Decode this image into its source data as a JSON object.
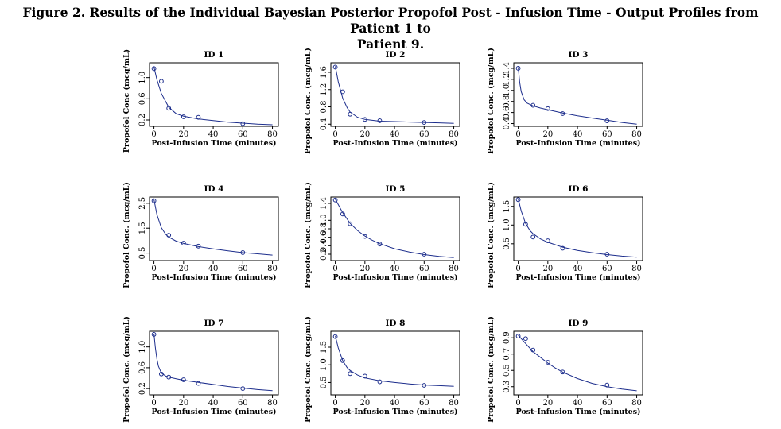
{
  "figure": {
    "title_line1": "Figure 2. Results of the Individual Bayesian Posterior Propofol Post - Infusion Time - Output Profiles from Patient 1 to",
    "title_line2": "Patient 9."
  },
  "chart_data": [
    {
      "type": "scatter",
      "title": "ID 1",
      "xlabel": "Post-Infusion Time (minutes)",
      "ylabel": "Propofol Conc (mcg/mL)",
      "xlim": [
        -3,
        84
      ],
      "ylim": [
        0.08,
        1.28
      ],
      "xticks": [
        0,
        20,
        40,
        60,
        80
      ],
      "yticks": [
        0.2,
        0.6,
        1.0
      ],
      "grid": false,
      "legend": "none",
      "points": {
        "x": [
          0,
          5,
          10,
          20,
          30,
          60
        ],
        "y": [
          1.17,
          0.93,
          0.42,
          0.26,
          0.25,
          0.13
        ]
      },
      "fit": {
        "x": [
          0,
          2,
          5,
          10,
          15,
          20,
          30,
          40,
          50,
          60,
          70,
          80
        ],
        "y": [
          1.2,
          0.96,
          0.7,
          0.44,
          0.32,
          0.27,
          0.22,
          0.19,
          0.16,
          0.14,
          0.12,
          0.11
        ]
      }
    },
    {
      "type": "scatter",
      "title": "ID 2",
      "xlabel": "Post-Infusion Time (minutes)",
      "ylabel": "Propofol Conc. (mcg/mL)",
      "xlim": [
        -3,
        84
      ],
      "ylim": [
        0.35,
        1.82
      ],
      "xticks": [
        0,
        20,
        40,
        60,
        80
      ],
      "yticks": [
        0.4,
        0.8,
        1.2,
        1.6
      ],
      "grid": false,
      "legend": "none",
      "points": {
        "x": [
          0,
          5,
          10,
          20,
          30,
          60
        ],
        "y": [
          1.72,
          1.15,
          0.63,
          0.51,
          0.48,
          0.44
        ]
      },
      "fit": {
        "x": [
          0,
          2,
          5,
          8,
          10,
          15,
          20,
          30,
          40,
          50,
          60,
          70,
          80
        ],
        "y": [
          1.74,
          1.38,
          1.0,
          0.78,
          0.68,
          0.56,
          0.51,
          0.47,
          0.46,
          0.45,
          0.44,
          0.43,
          0.42
        ]
      }
    },
    {
      "type": "scatter",
      "title": "ID 3",
      "xlabel": "Post-Infusion Time (minutes)",
      "ylabel": "Propofol Conc. (mcg/mL)",
      "xlim": [
        -3,
        84
      ],
      "ylim": [
        0.35,
        1.5
      ],
      "xticks": [
        0,
        20,
        40,
        60,
        80
      ],
      "yticks": [
        0.4,
        0.6,
        0.8,
        1.0,
        1.2,
        1.4
      ],
      "grid": false,
      "legend": "none",
      "points": {
        "x": [
          0,
          10,
          20,
          30,
          60
        ],
        "y": [
          1.4,
          0.73,
          0.67,
          0.58,
          0.45
        ]
      },
      "fit": {
        "x": [
          0,
          1,
          2,
          4,
          6,
          10,
          15,
          20,
          30,
          40,
          50,
          60,
          70,
          80
        ],
        "y": [
          1.42,
          1.15,
          0.98,
          0.83,
          0.77,
          0.72,
          0.68,
          0.65,
          0.59,
          0.54,
          0.5,
          0.46,
          0.42,
          0.39
        ]
      }
    },
    {
      "type": "scatter",
      "title": "ID 4",
      "xlabel": "Post-Infusion Time (minutes)",
      "ylabel": "Propofol Conc. (mcg/mL)",
      "xlim": [
        -3,
        84
      ],
      "ylim": [
        0.2,
        2.75
      ],
      "xticks": [
        0,
        20,
        40,
        60,
        80
      ],
      "yticks": [
        0.5,
        1.5,
        2.5
      ],
      "grid": false,
      "legend": "none",
      "points": {
        "x": [
          0,
          10,
          20,
          30,
          60
        ],
        "y": [
          2.6,
          1.22,
          0.9,
          0.78,
          0.52
        ]
      },
      "fit": {
        "x": [
          0,
          2,
          5,
          8,
          10,
          15,
          20,
          30,
          40,
          50,
          60,
          70,
          80
        ],
        "y": [
          2.65,
          2.05,
          1.52,
          1.25,
          1.14,
          0.98,
          0.89,
          0.76,
          0.67,
          0.59,
          0.52,
          0.47,
          0.42
        ]
      }
    },
    {
      "type": "scatter",
      "title": "ID 5",
      "xlabel": "Post-Infusion Time (minutes)",
      "ylabel": "Propofol Conc. (mcg/mL)",
      "xlim": [
        -3,
        84
      ],
      "ylim": [
        0.05,
        1.55
      ],
      "xticks": [
        0,
        20,
        40,
        60,
        80
      ],
      "yticks": [
        0.2,
        0.4,
        0.6,
        0.8,
        1.0,
        1.4
      ],
      "grid": false,
      "legend": "none",
      "points": {
        "x": [
          0,
          5,
          10,
          20,
          30,
          60
        ],
        "y": [
          1.48,
          1.15,
          0.92,
          0.62,
          0.44,
          0.2
        ]
      },
      "fit": {
        "x": [
          0,
          5,
          10,
          15,
          20,
          25,
          30,
          40,
          50,
          60,
          70,
          80
        ],
        "y": [
          1.5,
          1.18,
          0.93,
          0.76,
          0.63,
          0.53,
          0.45,
          0.33,
          0.25,
          0.19,
          0.15,
          0.12
        ]
      }
    },
    {
      "type": "scatter",
      "title": "ID 6",
      "xlabel": "Post-Infusion Time (minutes)",
      "ylabel": "Propofol Conc. (mcg/mL)",
      "xlim": [
        -3,
        84
      ],
      "ylim": [
        0.05,
        1.75
      ],
      "xticks": [
        0,
        20,
        40,
        60,
        80
      ],
      "yticks": [
        0.5,
        1.0,
        1.5
      ],
      "grid": false,
      "legend": "none",
      "points": {
        "x": [
          0,
          5,
          10,
          20,
          30,
          60
        ],
        "y": [
          1.68,
          1.02,
          0.68,
          0.58,
          0.38,
          0.22
        ]
      },
      "fit": {
        "x": [
          0,
          2,
          5,
          8,
          10,
          15,
          20,
          30,
          40,
          50,
          60,
          70,
          80
        ],
        "y": [
          1.7,
          1.38,
          1.04,
          0.85,
          0.77,
          0.63,
          0.54,
          0.41,
          0.32,
          0.26,
          0.21,
          0.17,
          0.14
        ]
      }
    },
    {
      "type": "scatter",
      "title": "ID 7",
      "xlabel": "Post-Infusion Time (minutes)",
      "ylabel": "Propofol Conc. (mcg/mL)",
      "xlim": [
        -3,
        84
      ],
      "ylim": [
        0.08,
        1.3
      ],
      "xticks": [
        0,
        20,
        40,
        60,
        80
      ],
      "yticks": [
        0.2,
        0.6,
        1.0
      ],
      "grid": false,
      "legend": "none",
      "points": {
        "x": [
          0,
          5,
          10,
          20,
          30,
          60
        ],
        "y": [
          1.24,
          0.48,
          0.42,
          0.37,
          0.3,
          0.2
        ]
      },
      "fit": {
        "x": [
          0,
          1,
          2,
          3,
          5,
          8,
          10,
          15,
          20,
          30,
          40,
          50,
          60,
          70,
          80
        ],
        "y": [
          1.25,
          0.98,
          0.77,
          0.63,
          0.5,
          0.44,
          0.42,
          0.39,
          0.36,
          0.32,
          0.28,
          0.24,
          0.21,
          0.18,
          0.16
        ]
      }
    },
    {
      "type": "scatter",
      "title": "ID 8",
      "xlabel": "Post-Infusion Time (minutes)",
      "ylabel": "Propofol Conc. (mcg/mL)",
      "xlim": [
        -3,
        84
      ],
      "ylim": [
        0.15,
        1.95
      ],
      "xticks": [
        0,
        20,
        40,
        60,
        80
      ],
      "yticks": [
        0.5,
        1.0,
        1.5
      ],
      "grid": false,
      "legend": "none",
      "points": {
        "x": [
          0,
          5,
          10,
          20,
          30,
          60
        ],
        "y": [
          1.8,
          1.12,
          0.75,
          0.68,
          0.52,
          0.42
        ]
      },
      "fit": {
        "x": [
          0,
          2,
          5,
          8,
          10,
          15,
          20,
          30,
          40,
          50,
          60,
          70,
          80
        ],
        "y": [
          1.82,
          1.48,
          1.12,
          0.92,
          0.84,
          0.71,
          0.63,
          0.55,
          0.5,
          0.46,
          0.43,
          0.41,
          0.39
        ]
      }
    },
    {
      "type": "scatter",
      "title": "ID 9",
      "xlabel": "Post-Infusion Time (minutes)",
      "ylabel": "Propofol Conc. (mcg/mL)",
      "xlim": [
        -3,
        84
      ],
      "ylim": [
        0.2,
        0.98
      ],
      "xticks": [
        0,
        20,
        40,
        60,
        80
      ],
      "yticks": [
        0.3,
        0.5,
        0.7,
        0.9
      ],
      "grid": false,
      "legend": "none",
      "points": {
        "x": [
          0,
          5,
          10,
          20,
          30,
          60
        ],
        "y": [
          0.92,
          0.89,
          0.75,
          0.6,
          0.48,
          0.32
        ]
      },
      "fit": {
        "x": [
          0,
          5,
          10,
          15,
          20,
          25,
          30,
          40,
          50,
          60,
          70,
          80
        ],
        "y": [
          0.93,
          0.83,
          0.73,
          0.66,
          0.59,
          0.53,
          0.48,
          0.4,
          0.34,
          0.3,
          0.27,
          0.25
        ]
      }
    }
  ],
  "colors": {
    "fit_line": "#1c2d8c",
    "markers": "#1c2d8c",
    "frame": "#000000"
  }
}
